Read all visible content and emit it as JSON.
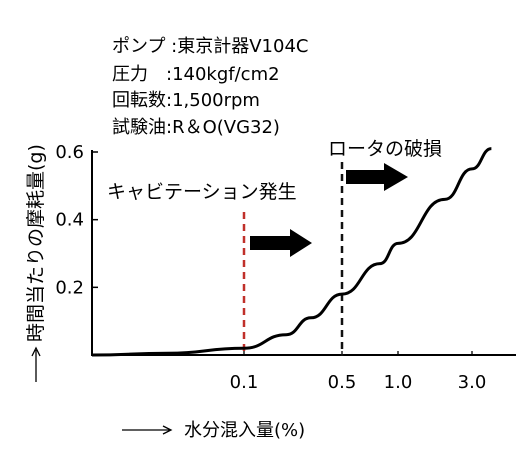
{
  "conditions": [
    "ポンプ :東京計器V104C",
    "圧力　:140kgf/cm2",
    "回転数:1,500rpm",
    "試験油:R＆O(VG32)"
  ],
  "chart_data": {
    "type": "line",
    "xlabel": "水分混入量(%)",
    "ylabel": "時間当たりの摩耗量(g)",
    "x_tick_labels": [
      "0.1",
      "0.5",
      "1.0",
      "3.0"
    ],
    "y_tick_labels": [
      "0.2",
      "0.4",
      "0.6"
    ],
    "ylim": [
      0,
      0.7
    ],
    "x": [
      0.0,
      0.05,
      0.1,
      0.2,
      0.3,
      0.5,
      0.8,
      1.0,
      2.0,
      3.0,
      4.0
    ],
    "y": [
      0.0,
      0.005,
      0.02,
      0.06,
      0.11,
      0.18,
      0.27,
      0.33,
      0.46,
      0.55,
      0.61
    ],
    "annotations": [
      {
        "text": "キャビテーション発生",
        "x": 0.1,
        "line_color": "#c0302a",
        "line_style": "dashed"
      },
      {
        "text": "ロータの破損",
        "x": 0.5,
        "line_color": "#111111",
        "line_style": "dashed"
      }
    ],
    "colors": {
      "curve": "#000000",
      "cavitation_line": "#c0302a",
      "damage_line": "#111111"
    }
  }
}
